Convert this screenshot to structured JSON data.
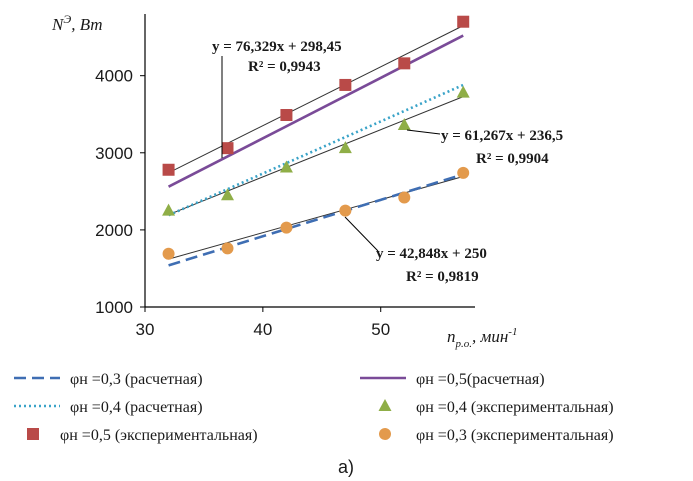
{
  "chart_data": {
    "type": "scatter",
    "y_axis_title": "N",
    "y_axis_title_sup": "Э",
    "y_axis_title_unit": ", Вт",
    "x_axis_title": "n",
    "x_axis_title_sub": "р.о.",
    "x_axis_title_unit": ", мин",
    "x_axis_title_sup": "-1",
    "xlim": [
      30,
      58
    ],
    "ylim": [
      1000,
      4800
    ],
    "x_ticks": [
      "30",
      "40",
      "50"
    ],
    "y_ticks": [
      "1000",
      "2000",
      "3000",
      "4000"
    ],
    "grid": false,
    "series": [
      {
        "name": "φн =0,5 (экспериментальная)",
        "marker": "square",
        "color": "#b94a48",
        "x": [
          32,
          37,
          42,
          47,
          52,
          57
        ],
        "y": [
          2780,
          3060,
          3490,
          3880,
          4160,
          4700
        ]
      },
      {
        "name": "φн =0,4 (экспериментальная)",
        "marker": "triangle",
        "color": "#8fae47",
        "x": [
          32,
          37,
          42,
          47,
          52,
          57
        ],
        "y": [
          2250,
          2450,
          2810,
          3060,
          3360,
          3780
        ]
      },
      {
        "name": "φн =0,3 (экспериментальная)",
        "marker": "circle",
        "color": "#e39a4c",
        "x": [
          32,
          37,
          42,
          47,
          52,
          57
        ],
        "y": [
          1690,
          1760,
          2030,
          2250,
          2420,
          2740
        ]
      }
    ],
    "calculated_lines": [
      {
        "name": "φн =0,5(расчетная)",
        "style": "solid",
        "color": "#7a4b98",
        "x": [
          32,
          57
        ],
        "y": [
          2560,
          4520
        ]
      },
      {
        "name": "φн =0,4 (расчетная)",
        "style": "dotted",
        "color": "#3aa3c8",
        "x": [
          32,
          57
        ],
        "y": [
          2190,
          3880
        ]
      },
      {
        "name": "φн =0,3 (расчетная)",
        "style": "dashed",
        "color": "#3f6eb3",
        "x": [
          32,
          57
        ],
        "y": [
          1540,
          2720
        ]
      }
    ],
    "trendlines": [
      {
        "slope": 76.329,
        "intercept": 298.45,
        "color": "#333333"
      },
      {
        "slope": 61.267,
        "intercept": 236.5,
        "color": "#333333"
      },
      {
        "slope": 42.848,
        "intercept": 250,
        "color": "#333333"
      }
    ],
    "annotations": [
      {
        "equation": "y = 76,329x + 298,45",
        "r2": "R² = 0,9943"
      },
      {
        "equation": "y = 61,267x + 236,5",
        "r2": "R² = 0,9904"
      },
      {
        "equation": "y = 42,848x + 250",
        "r2": "R² = 0,9819"
      }
    ],
    "legend": [
      {
        "label": "φн =0,3 (расчетная)"
      },
      {
        "label": "φн =0,5(расчетная)"
      },
      {
        "label": "φн =0,4 (расчетная)"
      },
      {
        "label": "φн =0,4 (экспериментальная)"
      },
      {
        "label": "φн =0,5 (экспериментальная)"
      },
      {
        "label": "φн =0,3 (экспериментальная)"
      }
    ],
    "caption": "а)"
  }
}
